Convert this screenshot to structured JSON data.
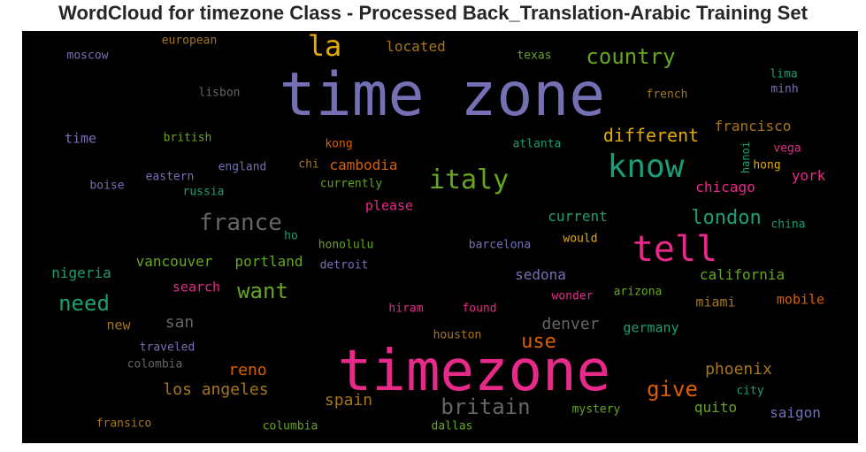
{
  "title": "WordCloud for timezone Class - Processed Back_Translation-Arabic Training Set",
  "chart_data": {
    "type": "wordcloud",
    "words": [
      {
        "text": "time zone",
        "color": "#7570b3"
      },
      {
        "text": "timezone",
        "color": "#e7298a"
      },
      {
        "text": "tell",
        "color": "#e7298a"
      },
      {
        "text": "know",
        "color": "#1b9e77"
      },
      {
        "text": "italy",
        "color": "#66a61e"
      },
      {
        "text": "la",
        "color": "#e6ab02"
      },
      {
        "text": "country",
        "color": "#66a61e"
      },
      {
        "text": "france",
        "color": "#666666"
      },
      {
        "text": "london",
        "color": "#1b9e77"
      },
      {
        "text": "britain",
        "color": "#666666"
      },
      {
        "text": "give",
        "color": "#d95f02"
      },
      {
        "text": "want",
        "color": "#66a61e"
      },
      {
        "text": "need",
        "color": "#1b9e77"
      },
      {
        "text": "use",
        "color": "#d95f02"
      },
      {
        "text": "different",
        "color": "#e6ab02"
      },
      {
        "text": "los angeles",
        "color": "#a6761d"
      },
      {
        "text": "phoenix",
        "color": "#a6761d"
      },
      {
        "text": "spain",
        "color": "#a6761d"
      },
      {
        "text": "denver",
        "color": "#666666"
      },
      {
        "text": "san",
        "color": "#666666"
      },
      {
        "text": "reno",
        "color": "#d95f02"
      },
      {
        "text": "california",
        "color": "#66a61e"
      },
      {
        "text": "francisco",
        "color": "#a6761d"
      },
      {
        "text": "located",
        "color": "#a6761d"
      },
      {
        "text": "sedona",
        "color": "#7570b3"
      },
      {
        "text": "quito",
        "color": "#66a61e"
      },
      {
        "text": "saigon",
        "color": "#7570b3"
      },
      {
        "text": "portland",
        "color": "#66a61e"
      },
      {
        "text": "vancouver",
        "color": "#66a61e"
      },
      {
        "text": "nigeria",
        "color": "#1b9e77"
      },
      {
        "text": "chicago",
        "color": "#e7298a"
      },
      {
        "text": "york",
        "color": "#e7298a"
      },
      {
        "text": "cambodia",
        "color": "#d95f02"
      },
      {
        "text": "current",
        "color": "#1b9e77"
      },
      {
        "text": "please",
        "color": "#e7298a"
      },
      {
        "text": "search",
        "color": "#e7298a"
      },
      {
        "text": "miami",
        "color": "#a6761d"
      },
      {
        "text": "mobile",
        "color": "#d95f02"
      },
      {
        "text": "germany",
        "color": "#1b9e77"
      },
      {
        "text": "time",
        "color": "#7570b3"
      },
      {
        "text": "new",
        "color": "#a6761d"
      },
      {
        "text": "european",
        "color": "#a6761d"
      },
      {
        "text": "texas",
        "color": "#66a61e"
      },
      {
        "text": "moscow",
        "color": "#7570b3"
      },
      {
        "text": "lisbon",
        "color": "#666666"
      },
      {
        "text": "french",
        "color": "#a6761d"
      },
      {
        "text": "lima",
        "color": "#1b9e77"
      },
      {
        "text": "minh",
        "color": "#7570b3"
      },
      {
        "text": "british",
        "color": "#66a61e"
      },
      {
        "text": "kong",
        "color": "#d95f02"
      },
      {
        "text": "atlanta",
        "color": "#1b9e77"
      },
      {
        "text": "hanoi",
        "color": "#1b9e77"
      },
      {
        "text": "vega",
        "color": "#e7298a"
      },
      {
        "text": "hong",
        "color": "#e6ab02"
      },
      {
        "text": "eastern",
        "color": "#7570b3"
      },
      {
        "text": "england",
        "color": "#7570b3"
      },
      {
        "text": "chi",
        "color": "#a6761d"
      },
      {
        "text": "currently",
        "color": "#66a61e"
      },
      {
        "text": "boise",
        "color": "#7570b3"
      },
      {
        "text": "russia",
        "color": "#1b9e77"
      },
      {
        "text": "china",
        "color": "#1b9e77"
      },
      {
        "text": "would",
        "color": "#e6ab02"
      },
      {
        "text": "ho",
        "color": "#1b9e77"
      },
      {
        "text": "honolulu",
        "color": "#66a61e"
      },
      {
        "text": "barcelona",
        "color": "#7570b3"
      },
      {
        "text": "detroit",
        "color": "#7570b3"
      },
      {
        "text": "wonder",
        "color": "#e7298a"
      },
      {
        "text": "arizona",
        "color": "#66a61e"
      },
      {
        "text": "hiram",
        "color": "#e7298a"
      },
      {
        "text": "found",
        "color": "#e7298a"
      },
      {
        "text": "houston",
        "color": "#a6761d"
      },
      {
        "text": "traveled",
        "color": "#7570b3"
      },
      {
        "text": "colombia",
        "color": "#666666"
      },
      {
        "text": "city",
        "color": "#1b9e77"
      },
      {
        "text": "mystery",
        "color": "#66a61e"
      },
      {
        "text": "fransico",
        "color": "#a6761d"
      },
      {
        "text": "columbia",
        "color": "#66a61e"
      },
      {
        "text": "dallas",
        "color": "#66a61e"
      }
    ]
  }
}
